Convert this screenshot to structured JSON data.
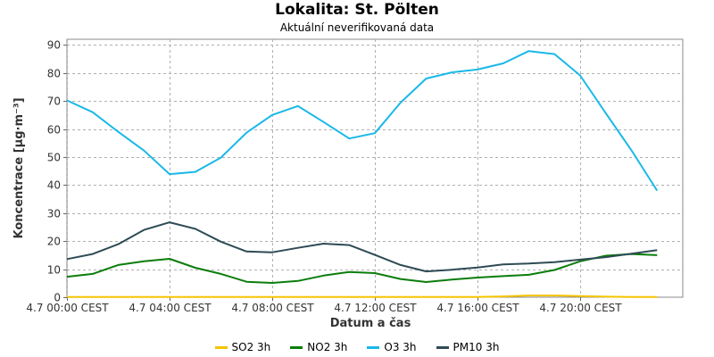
{
  "chart_data": {
    "type": "line",
    "title": "Lokalita: St. Pölten",
    "subtitle": "Aktuální neverifikovaná data",
    "xlabel": "Datum a čas",
    "ylabel": "Koncentrace [µg·m⁻³]",
    "ylim": [
      0,
      92
    ],
    "yticks": [
      0,
      10,
      20,
      30,
      40,
      50,
      60,
      70,
      80,
      90
    ],
    "xlim": [
      0,
      24
    ],
    "xticks": [
      0,
      4,
      8,
      12,
      16,
      20
    ],
    "xtick_labels": [
      "4.7 00:00 CEST",
      "4.7 04:00 CEST",
      "4.7 08:00 CEST",
      "4.7 12:00 CEST",
      "4.7 16:00 CEST",
      "4.7 20:00 CEST"
    ],
    "x": [
      0,
      1,
      2,
      3,
      4,
      5,
      6,
      7,
      8,
      9,
      10,
      11,
      12,
      13,
      14,
      15,
      16,
      17,
      18,
      19,
      20,
      21,
      22,
      23
    ],
    "grid": true,
    "legend_position": "bottom",
    "series": [
      {
        "name": "SO2 3h",
        "color": "#f5c400",
        "values": [
          0.1,
          0.1,
          0.1,
          0.1,
          0.1,
          0.1,
          0.1,
          0.1,
          0.1,
          0.1,
          0.1,
          0.1,
          0.1,
          0.1,
          0.1,
          0.1,
          0.1,
          0.3,
          0.6,
          0.6,
          0.4,
          0.2,
          0.1,
          0.1
        ]
      },
      {
        "name": "NO2 3h",
        "color": "#0b7d0b",
        "values": [
          7.3,
          8.3,
          11.5,
          12.8,
          13.7,
          10.5,
          8.3,
          5.5,
          5.1,
          5.8,
          7.7,
          9.0,
          8.6,
          6.5,
          5.4,
          6.3,
          7.0,
          7.5,
          8.0,
          9.7,
          12.8,
          14.8,
          15.4,
          15.0
        ]
      },
      {
        "name": "O3 3h",
        "color": "#1ab8e8",
        "values": [
          70.2,
          66.0,
          59.0,
          52.3,
          43.9,
          44.7,
          49.8,
          58.7,
          65.0,
          68.2,
          62.5,
          56.6,
          58.5,
          69.4,
          78.0,
          80.2,
          81.2,
          83.4,
          87.8,
          86.7,
          79.1,
          65.6,
          52.4,
          38.0
        ]
      },
      {
        "name": "PM10 3h",
        "color": "#2e4b55",
        "values": [
          13.6,
          15.4,
          18.9,
          24.0,
          26.7,
          24.4,
          19.8,
          16.3,
          16.0,
          17.6,
          19.1,
          18.6,
          15.1,
          11.5,
          9.2,
          9.8,
          10.6,
          11.7,
          12.0,
          12.5,
          13.4,
          14.3,
          15.5,
          16.8
        ]
      }
    ]
  }
}
